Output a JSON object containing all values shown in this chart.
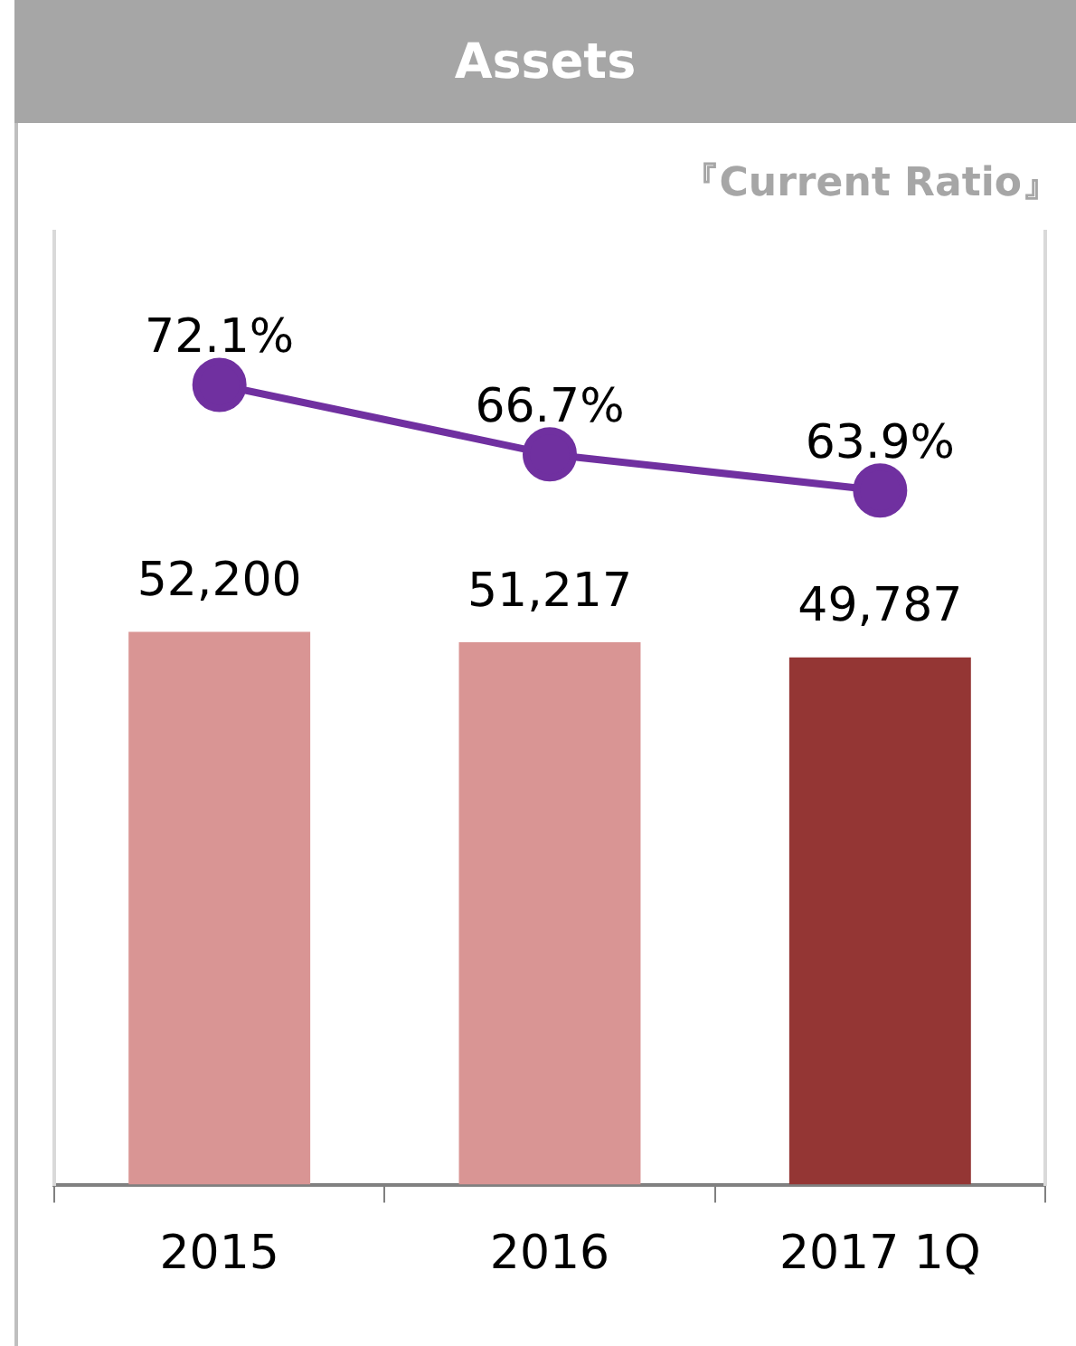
{
  "chart_data": {
    "type": "bar",
    "title": "Assets",
    "subtitle": "『Current Ratio』",
    "categories": [
      "2015",
      "2016",
      "2017 1Q"
    ],
    "series": [
      {
        "colors": [
          "#d99594",
          "#d99594",
          "#943634"
        ],
        "values": [
          52200,
          51217,
          49787
        ],
        "value_labels": [
          "52,200",
          "51,217",
          "49,787"
        ]
      },
      {
        "type": "line",
        "axis": "y2",
        "color": "#7030a0",
        "values": [
          72.1,
          66.7,
          63.9
        ],
        "value_labels": [
          "72.1%",
          "66.7%",
          "63.9%"
        ]
      }
    ],
    "ylim": [
      0,
      90000
    ],
    "y2lim": [
      10,
      84
    ],
    "tick_labels": "x",
    "grid": false,
    "legend": false,
    "marker": "circle",
    "line_style": "solid"
  }
}
